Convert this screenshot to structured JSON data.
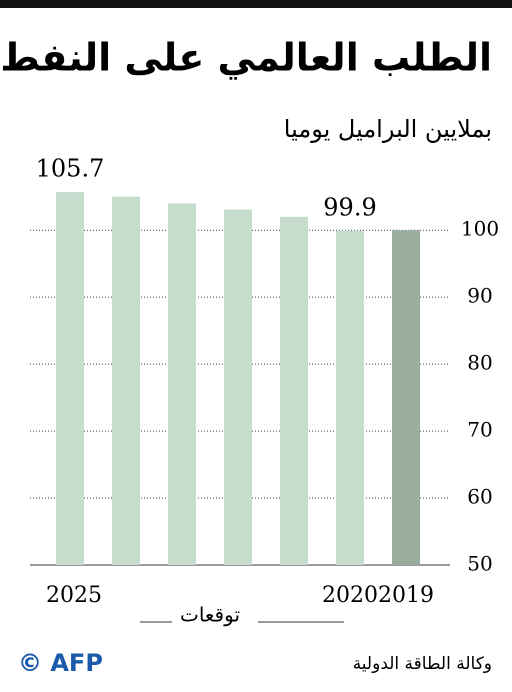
{
  "chart_data": {
    "type": "bar",
    "title": "الطلب العالمي على النفط",
    "subtitle": "بملايين البراميل يوميا",
    "categories": [
      "2019",
      "2020",
      null,
      null,
      null,
      null,
      "2025"
    ],
    "values": [
      100.0,
      99.9,
      102.0,
      103.1,
      104.0,
      105.0,
      105.7
    ],
    "value_labels": [
      null,
      "99.9",
      null,
      null,
      null,
      null,
      "105.7"
    ],
    "colors": [
      "#9aae9f",
      "#c6dccd",
      "#c6dccd",
      "#c6dccd",
      "#c6dccd",
      "#c6dccd",
      "#c6dccd"
    ],
    "forecast_label": "توقعات",
    "ylim": [
      50,
      107.5
    ],
    "yticks": [
      50,
      60,
      70,
      80,
      90,
      100
    ],
    "grid": true,
    "source": "وكالة الطاقة الدولية",
    "credit": "© AFP"
  }
}
